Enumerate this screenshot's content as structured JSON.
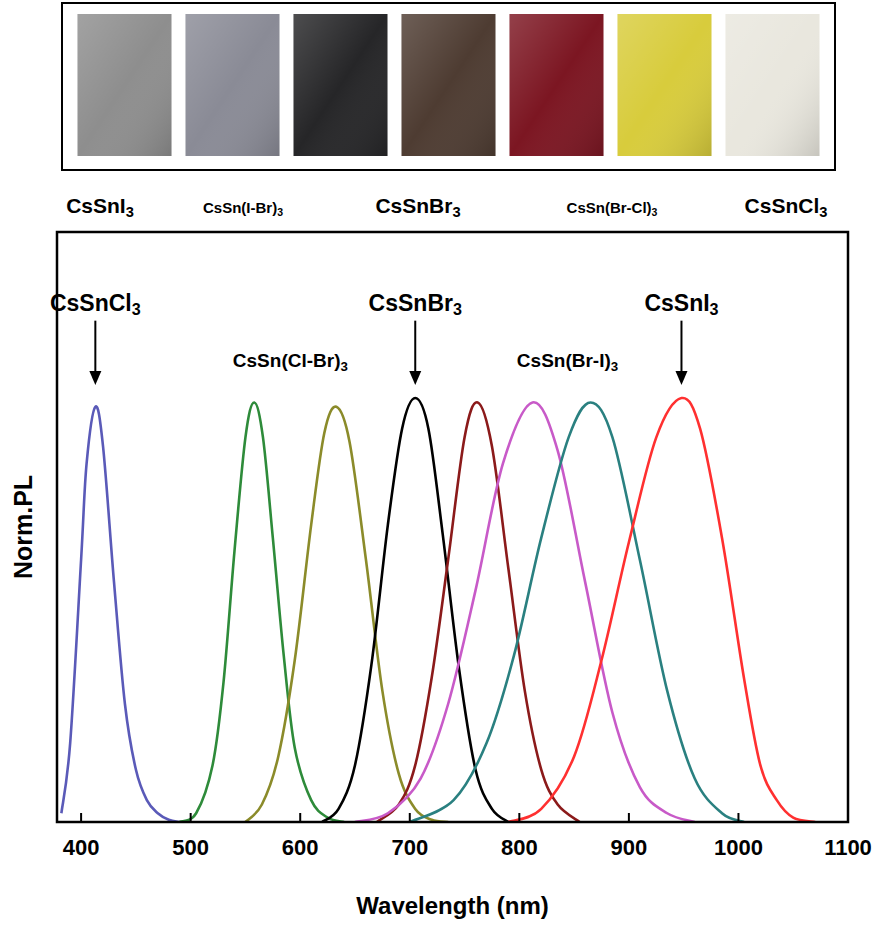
{
  "photo_strip": {
    "colors": [
      "#8e8e8e",
      "#8a8b96",
      "#262628",
      "#4e3c32",
      "#7c1622",
      "#d8cc3c",
      "#e9e7de"
    ],
    "labels": [
      "CsSnI3",
      "CsSn(I-Br)3",
      "CsSnBr3",
      "CsSn(Br-Cl)3",
      "CsSnCl3"
    ]
  },
  "chart_data": {
    "type": "line",
    "xlabel": "Wavelength (nm)",
    "ylabel": "Norm.PL",
    "xlim": [
      378,
      1100
    ],
    "ylim": [
      0,
      1.35
    ],
    "xticks": [
      400,
      500,
      600,
      700,
      800,
      900,
      1000,
      1100
    ],
    "tick_labels": "x",
    "grid": false,
    "series": [
      {
        "color": "#5a5ab8",
        "x": [
          382,
          390,
          400,
          405,
          413,
          420,
          430,
          440,
          450,
          460,
          470,
          480,
          490
        ],
        "values": [
          0.02,
          0.18,
          0.6,
          0.82,
          0.95,
          0.86,
          0.55,
          0.27,
          0.12,
          0.05,
          0.02,
          0.005,
          0
        ]
      },
      {
        "color": "#2e8b3a",
        "x": [
          490,
          505,
          520,
          530,
          540,
          550,
          558,
          566,
          575,
          585,
          595,
          610,
          625,
          640
        ],
        "values": [
          0,
          0.02,
          0.13,
          0.32,
          0.62,
          0.88,
          0.96,
          0.88,
          0.65,
          0.38,
          0.17,
          0.05,
          0.01,
          0
        ]
      },
      {
        "color": "#8b8b2a",
        "x": [
          550,
          565,
          580,
          595,
          610,
          622,
          633,
          645,
          660,
          675,
          690,
          705,
          720,
          735
        ],
        "values": [
          0,
          0.04,
          0.15,
          0.37,
          0.68,
          0.89,
          0.95,
          0.87,
          0.6,
          0.3,
          0.11,
          0.03,
          0.005,
          0
        ]
      },
      {
        "color": "#000000",
        "x": [
          620,
          635,
          650,
          665,
          680,
          693,
          705,
          717,
          730,
          745,
          760,
          775,
          790
        ],
        "values": [
          0,
          0.03,
          0.13,
          0.36,
          0.68,
          0.9,
          0.97,
          0.9,
          0.66,
          0.35,
          0.12,
          0.03,
          0
        ]
      },
      {
        "color": "#8b1a1a",
        "x": [
          670,
          690,
          705,
          720,
          735,
          750,
          762,
          775,
          790,
          805,
          820,
          835,
          855
        ],
        "values": [
          0,
          0.04,
          0.13,
          0.33,
          0.6,
          0.88,
          0.96,
          0.86,
          0.58,
          0.3,
          0.12,
          0.04,
          0
        ]
      },
      {
        "color": "#c85ac8",
        "x": [
          650,
          680,
          710,
          735,
          760,
          785,
          812,
          835,
          860,
          885,
          910,
          935,
          960
        ],
        "values": [
          0,
          0.02,
          0.1,
          0.27,
          0.53,
          0.82,
          0.96,
          0.85,
          0.55,
          0.25,
          0.08,
          0.02,
          0
        ]
      },
      {
        "color": "#2a8080",
        "x": [
          700,
          740,
          770,
          795,
          820,
          845,
          865,
          885,
          910,
          935,
          960,
          985,
          1005
        ],
        "values": [
          0,
          0.05,
          0.18,
          0.38,
          0.65,
          0.88,
          0.96,
          0.88,
          0.6,
          0.3,
          0.1,
          0.02,
          0
        ]
      },
      {
        "color": "#ff3030",
        "x": [
          790,
          820,
          850,
          875,
          900,
          925,
          948,
          965,
          985,
          1005,
          1020,
          1035,
          1050,
          1070
        ],
        "values": [
          0,
          0.03,
          0.15,
          0.37,
          0.64,
          0.88,
          0.97,
          0.9,
          0.65,
          0.33,
          0.13,
          0.05,
          0.01,
          0
        ]
      }
    ],
    "annotations": [
      {
        "text": "CsSnCl3",
        "x": 413,
        "y": 1.17,
        "xy": [
          413,
          1.0
        ]
      },
      {
        "text": "CsSn(Cl-Br)3",
        "x": 591,
        "y": 1.04
      },
      {
        "text": "CsSnBr3",
        "x": 705,
        "y": 1.17,
        "xy": [
          705,
          1.0
        ]
      },
      {
        "text": "CsSn(Br-I)3",
        "x": 844,
        "y": 1.04
      },
      {
        "text": "CsSnI3",
        "x": 948,
        "y": 1.17,
        "xy": [
          948,
          1.0
        ]
      }
    ]
  }
}
